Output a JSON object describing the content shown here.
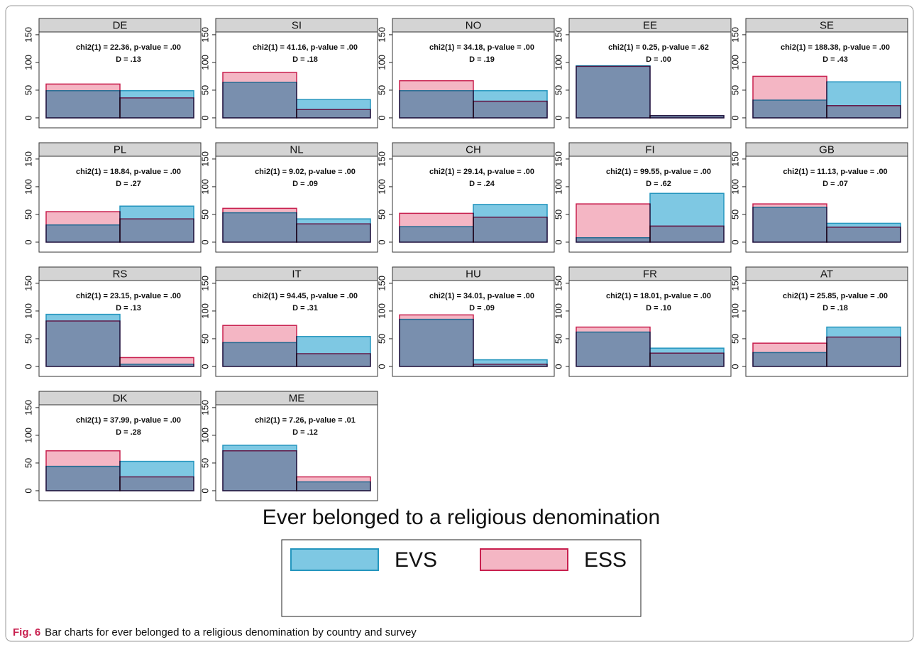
{
  "chart_data": [
    {
      "type": "bar",
      "title": "DE",
      "annotations": [
        "chi2(1) = 22.36, p-value = .00",
        "D = .13"
      ],
      "categories": [
        null,
        null
      ],
      "series": [
        {
          "name": "EVS",
          "color": "#7ec8e3",
          "edgecolor": "#2596be",
          "values": [
            49,
            49
          ]
        },
        {
          "name": "ESS",
          "color": "#f4b6c4",
          "edgecolor": "#c8204f",
          "values": [
            61,
            36
          ]
        }
      ],
      "ylim": [
        -18,
        155
      ],
      "yticks": [
        0,
        50,
        100,
        150
      ]
    },
    {
      "type": "bar",
      "title": "SI",
      "annotations": [
        "chi2(1) = 41.16, p-value = .00",
        "D = .18"
      ],
      "categories": [
        null,
        null
      ],
      "series": [
        {
          "name": "EVS",
          "color": "#7ec8e3",
          "edgecolor": "#2596be",
          "values": [
            64,
            33
          ]
        },
        {
          "name": "ESS",
          "color": "#f4b6c4",
          "edgecolor": "#c8204f",
          "values": [
            82,
            15
          ]
        }
      ],
      "ylim": [
        -18,
        155
      ],
      "yticks": [
        0,
        50,
        100,
        150
      ]
    },
    {
      "type": "bar",
      "title": "NO",
      "annotations": [
        "chi2(1) = 34.18, p-value = .00",
        "D = .19"
      ],
      "categories": [
        null,
        null
      ],
      "series": [
        {
          "name": "EVS",
          "color": "#7ec8e3",
          "edgecolor": "#2596be",
          "values": [
            49,
            49
          ]
        },
        {
          "name": "ESS",
          "color": "#f4b6c4",
          "edgecolor": "#c8204f",
          "values": [
            67,
            30
          ]
        }
      ],
      "ylim": [
        -18,
        155
      ],
      "yticks": [
        0,
        50,
        100,
        150
      ]
    },
    {
      "type": "bar",
      "title": "EE",
      "annotations": [
        "chi2(1) = 0.25, p-value = .62",
        "D = .00"
      ],
      "categories": [
        null,
        null
      ],
      "series": [
        {
          "name": "EVS",
          "color": "#7ec8e3",
          "edgecolor": "#2596be",
          "values": [
            94,
            4
          ]
        },
        {
          "name": "ESS",
          "color": "#f4b6c4",
          "edgecolor": "#c8204f",
          "values": [
            93,
            4
          ]
        }
      ],
      "ylim": [
        -18,
        155
      ],
      "yticks": [
        0,
        50,
        100,
        150
      ]
    },
    {
      "type": "bar",
      "title": "SE",
      "annotations": [
        "chi2(1) = 188.38, p-value = .00",
        "D = .43"
      ],
      "categories": [
        null,
        null
      ],
      "series": [
        {
          "name": "EVS",
          "color": "#7ec8e3",
          "edgecolor": "#2596be",
          "values": [
            32,
            65
          ]
        },
        {
          "name": "ESS",
          "color": "#f4b6c4",
          "edgecolor": "#c8204f",
          "values": [
            75,
            22
          ]
        }
      ],
      "ylim": [
        -18,
        155
      ],
      "yticks": [
        0,
        50,
        100,
        150
      ]
    },
    {
      "type": "bar",
      "title": "PL",
      "annotations": [
        "chi2(1) = 18.84, p-value = .00",
        "D = .27"
      ],
      "categories": [
        null,
        null
      ],
      "series": [
        {
          "name": "EVS",
          "color": "#7ec8e3",
          "edgecolor": "#2596be",
          "values": [
            31,
            65
          ]
        },
        {
          "name": "ESS",
          "color": "#f4b6c4",
          "edgecolor": "#c8204f",
          "values": [
            55,
            42
          ]
        }
      ],
      "ylim": [
        -18,
        155
      ],
      "yticks": [
        0,
        50,
        100,
        150
      ]
    },
    {
      "type": "bar",
      "title": "NL",
      "annotations": [
        "chi2(1) = 9.02, p-value = .00",
        "D = .09"
      ],
      "categories": [
        null,
        null
      ],
      "series": [
        {
          "name": "EVS",
          "color": "#7ec8e3",
          "edgecolor": "#2596be",
          "values": [
            53,
            42
          ]
        },
        {
          "name": "ESS",
          "color": "#f4b6c4",
          "edgecolor": "#c8204f",
          "values": [
            61,
            33
          ]
        }
      ],
      "ylim": [
        -18,
        155
      ],
      "yticks": [
        0,
        50,
        100,
        150
      ]
    },
    {
      "type": "bar",
      "title": "CH",
      "annotations": [
        "chi2(1) = 29.14, p-value = .00",
        "D = .24"
      ],
      "categories": [
        null,
        null
      ],
      "series": [
        {
          "name": "EVS",
          "color": "#7ec8e3",
          "edgecolor": "#2596be",
          "values": [
            28,
            68
          ]
        },
        {
          "name": "ESS",
          "color": "#f4b6c4",
          "edgecolor": "#c8204f",
          "values": [
            52,
            45
          ]
        }
      ],
      "ylim": [
        -18,
        155
      ],
      "yticks": [
        0,
        50,
        100,
        150
      ]
    },
    {
      "type": "bar",
      "title": "FI",
      "annotations": [
        "chi2(1) = 99.55, p-value = .00",
        "D = .62"
      ],
      "categories": [
        null,
        null
      ],
      "series": [
        {
          "name": "EVS",
          "color": "#7ec8e3",
          "edgecolor": "#2596be",
          "values": [
            8,
            88
          ]
        },
        {
          "name": "ESS",
          "color": "#f4b6c4",
          "edgecolor": "#c8204f",
          "values": [
            69,
            29
          ]
        }
      ],
      "ylim": [
        -18,
        155
      ],
      "yticks": [
        0,
        50,
        100,
        150
      ]
    },
    {
      "type": "bar",
      "title": "GB",
      "annotations": [
        "chi2(1) = 11.13, p-value = .00",
        "D = .07"
      ],
      "categories": [
        null,
        null
      ],
      "series": [
        {
          "name": "EVS",
          "color": "#7ec8e3",
          "edgecolor": "#2596be",
          "values": [
            63,
            34
          ]
        },
        {
          "name": "ESS",
          "color": "#f4b6c4",
          "edgecolor": "#c8204f",
          "values": [
            69,
            27
          ]
        }
      ],
      "ylim": [
        -18,
        155
      ],
      "yticks": [
        0,
        50,
        100,
        150
      ]
    },
    {
      "type": "bar",
      "title": "RS",
      "annotations": [
        "chi2(1) = 23.15, p-value = .00",
        "D = .13"
      ],
      "categories": [
        null,
        null
      ],
      "series": [
        {
          "name": "EVS",
          "color": "#7ec8e3",
          "edgecolor": "#2596be",
          "values": [
            94,
            4
          ]
        },
        {
          "name": "ESS",
          "color": "#f4b6c4",
          "edgecolor": "#c8204f",
          "values": [
            82,
            16
          ]
        }
      ],
      "ylim": [
        -18,
        155
      ],
      "yticks": [
        0,
        50,
        100,
        150
      ]
    },
    {
      "type": "bar",
      "title": "IT",
      "annotations": [
        "chi2(1) = 94.45, p-value = .00",
        "D = .31"
      ],
      "categories": [
        null,
        null
      ],
      "series": [
        {
          "name": "EVS",
          "color": "#7ec8e3",
          "edgecolor": "#2596be",
          "values": [
            43,
            54
          ]
        },
        {
          "name": "ESS",
          "color": "#f4b6c4",
          "edgecolor": "#c8204f",
          "values": [
            74,
            23
          ]
        }
      ],
      "ylim": [
        -18,
        155
      ],
      "yticks": [
        0,
        50,
        100,
        150
      ]
    },
    {
      "type": "bar",
      "title": "HU",
      "annotations": [
        "chi2(1) = 34.01, p-value = .00",
        "D = .09"
      ],
      "categories": [
        null,
        null
      ],
      "series": [
        {
          "name": "EVS",
          "color": "#7ec8e3",
          "edgecolor": "#2596be",
          "values": [
            85,
            12
          ]
        },
        {
          "name": "ESS",
          "color": "#f4b6c4",
          "edgecolor": "#c8204f",
          "values": [
            93,
            4
          ]
        }
      ],
      "ylim": [
        -18,
        155
      ],
      "yticks": [
        0,
        50,
        100,
        150
      ]
    },
    {
      "type": "bar",
      "title": "FR",
      "annotations": [
        "chi2(1) = 18.01, p-value = .00",
        "D = .10"
      ],
      "categories": [
        null,
        null
      ],
      "series": [
        {
          "name": "EVS",
          "color": "#7ec8e3",
          "edgecolor": "#2596be",
          "values": [
            62,
            33
          ]
        },
        {
          "name": "ESS",
          "color": "#f4b6c4",
          "edgecolor": "#c8204f",
          "values": [
            71,
            24
          ]
        }
      ],
      "ylim": [
        -18,
        155
      ],
      "yticks": [
        0,
        50,
        100,
        150
      ]
    },
    {
      "type": "bar",
      "title": "AT",
      "annotations": [
        "chi2(1) = 25.85, p-value = .00",
        "D = .18"
      ],
      "categories": [
        null,
        null
      ],
      "series": [
        {
          "name": "EVS",
          "color": "#7ec8e3",
          "edgecolor": "#2596be",
          "values": [
            25,
            71
          ]
        },
        {
          "name": "ESS",
          "color": "#f4b6c4",
          "edgecolor": "#c8204f",
          "values": [
            42,
            53
          ]
        }
      ],
      "ylim": [
        -18,
        155
      ],
      "yticks": [
        0,
        50,
        100,
        150
      ]
    },
    {
      "type": "bar",
      "title": "DK",
      "annotations": [
        "chi2(1) = 37.99, p-value = .00",
        "D = .28"
      ],
      "categories": [
        null,
        null
      ],
      "series": [
        {
          "name": "EVS",
          "color": "#7ec8e3",
          "edgecolor": "#2596be",
          "values": [
            44,
            53
          ]
        },
        {
          "name": "ESS",
          "color": "#f4b6c4",
          "edgecolor": "#c8204f",
          "values": [
            72,
            25
          ]
        }
      ],
      "ylim": [
        -18,
        155
      ],
      "yticks": [
        0,
        50,
        100,
        150
      ]
    },
    {
      "type": "bar",
      "title": "ME",
      "annotations": [
        "chi2(1) = 7.26, p-value = .01",
        "D = .12"
      ],
      "categories": [
        null,
        null
      ],
      "series": [
        {
          "name": "EVS",
          "color": "#7ec8e3",
          "edgecolor": "#2596be",
          "values": [
            82,
            16
          ]
        },
        {
          "name": "ESS",
          "color": "#f4b6c4",
          "edgecolor": "#c8204f",
          "values": [
            72,
            25
          ]
        }
      ],
      "ylim": [
        -18,
        155
      ],
      "yticks": [
        0,
        50,
        100,
        150
      ]
    }
  ],
  "xlabel": "Ever belonged to a religious denomination",
  "caption": {
    "label": "Fig. 6",
    "text": "Bar charts for ever belonged to a religious denomination by country and survey"
  }
}
